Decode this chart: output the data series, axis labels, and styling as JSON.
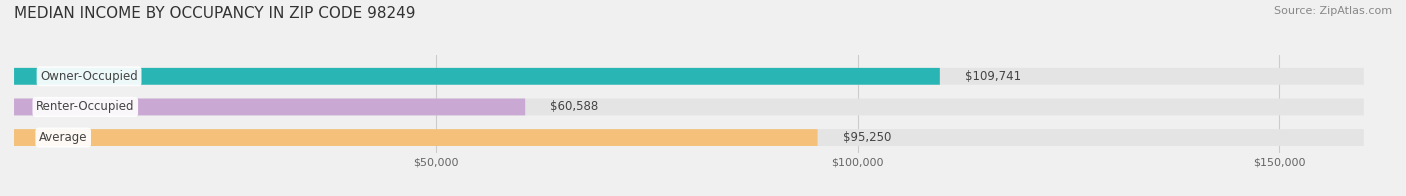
{
  "title": "MEDIAN INCOME BY OCCUPANCY IN ZIP CODE 98249",
  "source": "Source: ZipAtlas.com",
  "categories": [
    "Owner-Occupied",
    "Renter-Occupied",
    "Average"
  ],
  "values": [
    109741,
    60588,
    95250
  ],
  "bar_colors": [
    "#2ab5b5",
    "#c9a8d4",
    "#f5c07a"
  ],
  "bar_edge_colors": [
    "#2ab5b5",
    "#c9a8d4",
    "#f5c07a"
  ],
  "value_labels": [
    "$109,741",
    "$60,588",
    "$95,250"
  ],
  "x_ticks": [
    0,
    50000,
    100000,
    150000
  ],
  "x_tick_labels": [
    "$50,000",
    "$100,000",
    "$150,000"
  ],
  "xlim": [
    0,
    160000
  ],
  "background_color": "#f0f0f0",
  "bar_background_color": "#e8e8e8",
  "title_fontsize": 11,
  "source_fontsize": 8
}
